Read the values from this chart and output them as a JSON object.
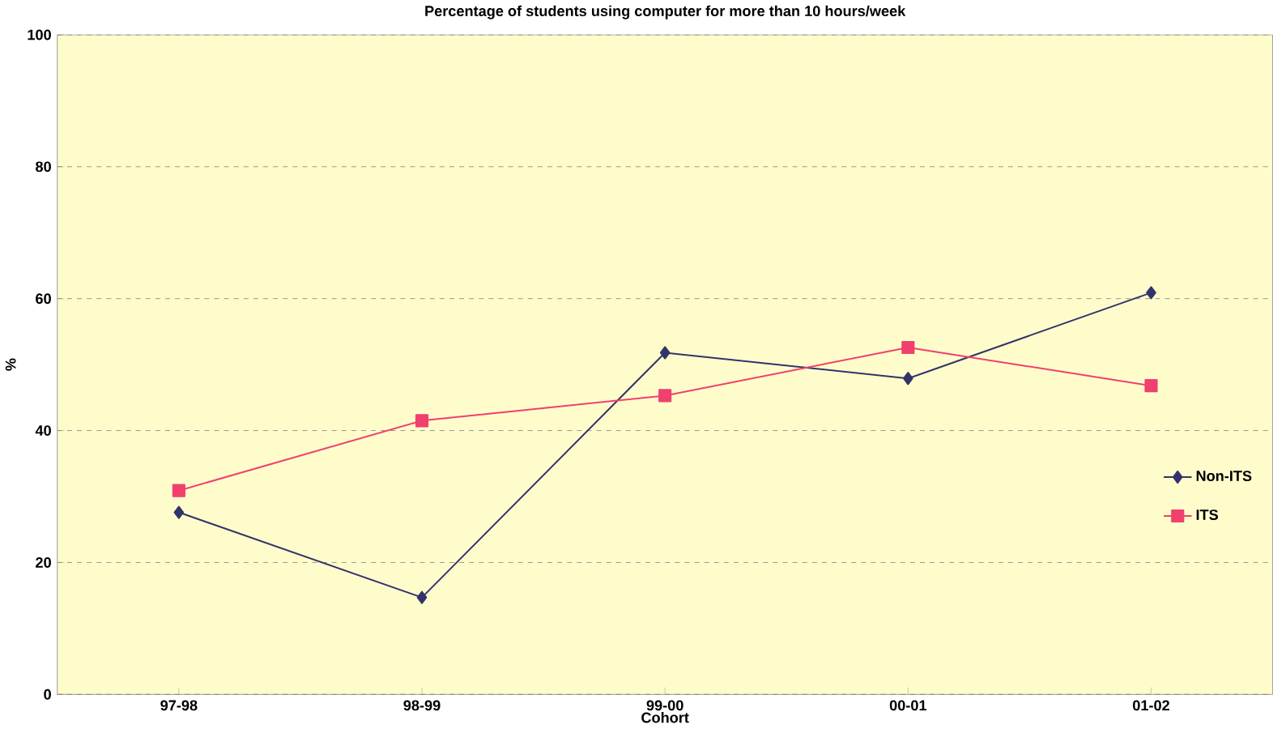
{
  "chart_data": {
    "type": "line",
    "title": "Percentage of students using computer for more than 10 hours/week",
    "xlabel": "Cohort",
    "ylabel": "%",
    "categories": [
      "97-98",
      "98-99",
      "99-00",
      "00-01",
      "01-02"
    ],
    "series": [
      {
        "name": "Non-ITS",
        "color": "#33336b",
        "marker": "diamond",
        "values": [
          27.6,
          14.7,
          51.8,
          47.9,
          60.9
        ]
      },
      {
        "name": "ITS",
        "color": "#f0406e",
        "marker": "square",
        "values": [
          30.9,
          41.5,
          45.3,
          52.6,
          46.8
        ]
      }
    ],
    "ylim": [
      0,
      100
    ],
    "yticks": [
      0,
      20,
      40,
      60,
      80,
      100
    ],
    "grid": "y",
    "legend": "right"
  }
}
